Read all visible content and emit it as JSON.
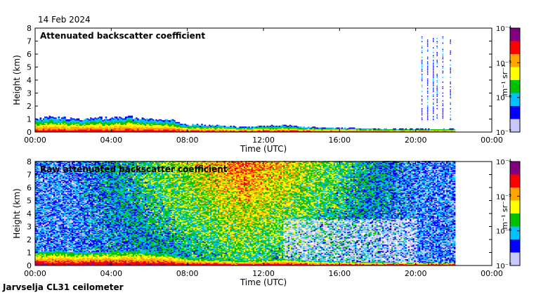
{
  "date_label": "14 Feb 2024",
  "footer_label": "Jarvselja CL31 ceilometer",
  "chart_data": [
    {
      "type": "heatmap",
      "title": "Attenuated backscatter coefficient",
      "xlabel": "Time (UTC)",
      "ylabel": "Height (km)",
      "x_ticks": [
        "00:00",
        "04:00",
        "08:00",
        "12:00",
        "16:00",
        "20:00",
        "00:00"
      ],
      "xlim_hours": [
        0,
        24
      ],
      "y_ticks": [
        0,
        1,
        2,
        3,
        4,
        5,
        6,
        7,
        8
      ],
      "ylim": [
        0,
        8
      ],
      "data_end_hour": 22,
      "colorbar": {
        "label": "m⁻¹ sr⁻¹",
        "ticks": [
          "10⁻⁴",
          "10⁻⁵",
          "10⁻⁶",
          "10⁻⁷"
        ],
        "scale": "log",
        "colors": [
          "#800080",
          "#ff0000",
          "#ffa500",
          "#ffff00",
          "#00c000",
          "#00c0ff",
          "#0000ff",
          "#c8c8ff"
        ]
      },
      "boundary_layer_top_km": [
        [
          0,
          1.0
        ],
        [
          1,
          1.1
        ],
        [
          2,
          1.0
        ],
        [
          3,
          1.0
        ],
        [
          4,
          1.05
        ],
        [
          5,
          1.1
        ],
        [
          6,
          1.0
        ],
        [
          7,
          0.9
        ],
        [
          8,
          0.55
        ],
        [
          9,
          0.5
        ],
        [
          10,
          0.42
        ],
        [
          11,
          0.35
        ],
        [
          12,
          0.45
        ],
        [
          13,
          0.5
        ],
        [
          14,
          0.38
        ],
        [
          15,
          0.3
        ],
        [
          16,
          0.28
        ],
        [
          18,
          0.22
        ],
        [
          20,
          0.2
        ],
        [
          22,
          0.2
        ]
      ],
      "cloud_columns_hour": [
        20.3,
        20.6,
        20.9,
        21.1,
        21.4,
        21.8
      ]
    },
    {
      "type": "heatmap",
      "title": "Raw attenuated backscatter coefficient",
      "xlabel": "Time (UTC)",
      "ylabel": "Height (km)",
      "x_ticks": [
        "00:00",
        "04:00",
        "08:00",
        "12:00",
        "16:00",
        "20:00",
        "00:00"
      ],
      "xlim_hours": [
        0,
        24
      ],
      "y_ticks": [
        0,
        1,
        2,
        3,
        4,
        5,
        6,
        7,
        8
      ],
      "ylim": [
        0,
        8
      ],
      "data_end_hour": 22,
      "colorbar": {
        "label": "m⁻¹ sr⁻¹",
        "ticks": [
          "10⁻⁴",
          "10⁻⁵",
          "10⁻⁶",
          "10⁻⁷"
        ],
        "scale": "log",
        "colors": [
          "#800080",
          "#ff0000",
          "#ffa500",
          "#ffff00",
          "#00c000",
          "#00c0ff",
          "#0000ff",
          "#c8c8ff"
        ]
      },
      "noise_peak_hour": 11,
      "boundary_layer_top_km": [
        [
          0,
          1.0
        ],
        [
          1,
          1.1
        ],
        [
          2,
          1.0
        ],
        [
          3,
          1.0
        ],
        [
          4,
          1.05
        ],
        [
          5,
          1.1
        ],
        [
          6,
          1.0
        ],
        [
          7,
          0.9
        ],
        [
          8,
          0.55
        ],
        [
          9,
          0.5
        ],
        [
          10,
          0.42
        ],
        [
          11,
          0.35
        ],
        [
          12,
          0.45
        ],
        [
          13,
          0.5
        ],
        [
          14,
          0.38
        ],
        [
          15,
          0.3
        ],
        [
          16,
          0.28
        ],
        [
          18,
          0.22
        ],
        [
          20,
          0.2
        ],
        [
          22,
          0.2
        ]
      ]
    }
  ]
}
